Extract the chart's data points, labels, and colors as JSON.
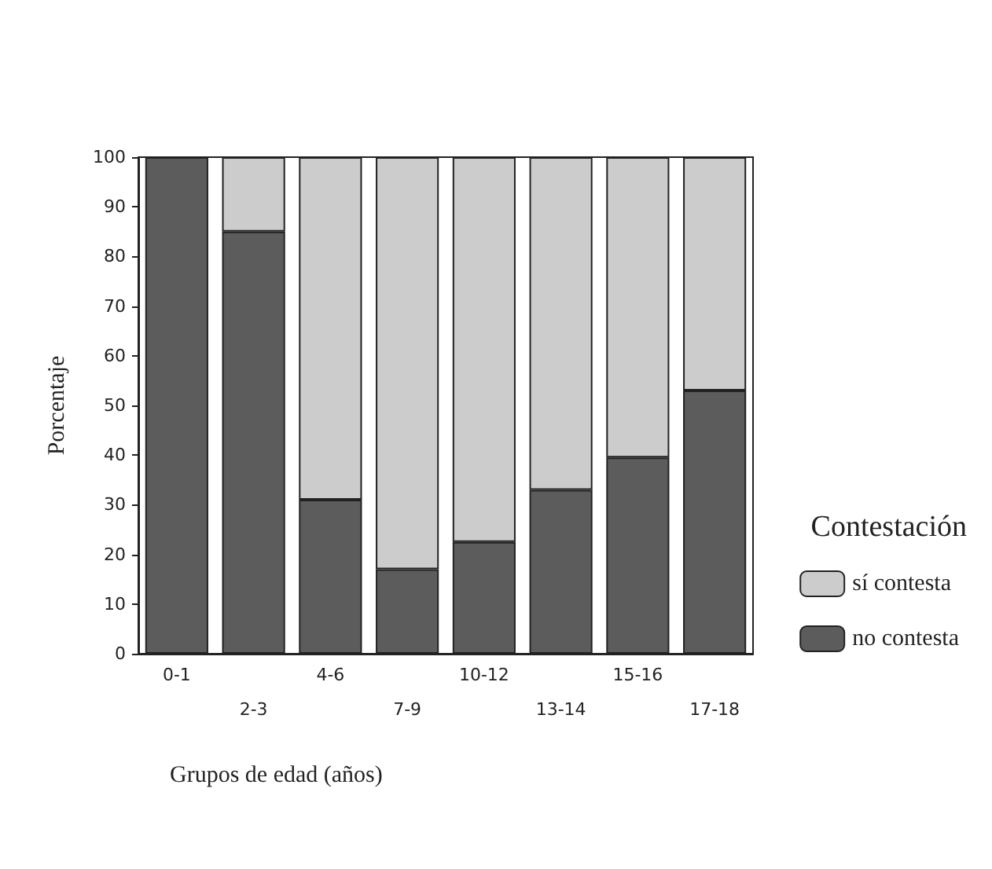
{
  "chart_data": {
    "type": "bar",
    "stacked": true,
    "xlabel": "Grupos de edad (años)",
    "ylabel": "Porcentaje",
    "legend_title": "Contestación",
    "legend": "right",
    "categories": [
      "0-1",
      "2-3",
      "4-6",
      "7-9",
      "10-12",
      "13-14",
      "15-16",
      "17-18"
    ],
    "series": [
      {
        "name": "no contesta",
        "color": "#5c5c5c",
        "values": [
          100,
          85,
          31,
          17,
          22.5,
          33,
          39.5,
          53
        ]
      },
      {
        "name": "sí contesta",
        "color": "#cccccc",
        "values": [
          0,
          15,
          69,
          83,
          77.5,
          67,
          60.5,
          47
        ]
      }
    ],
    "ylim": [
      0,
      100
    ],
    "yticks": [
      0,
      10,
      20,
      30,
      40,
      50,
      60,
      70,
      80,
      90,
      100
    ],
    "grid": false
  }
}
